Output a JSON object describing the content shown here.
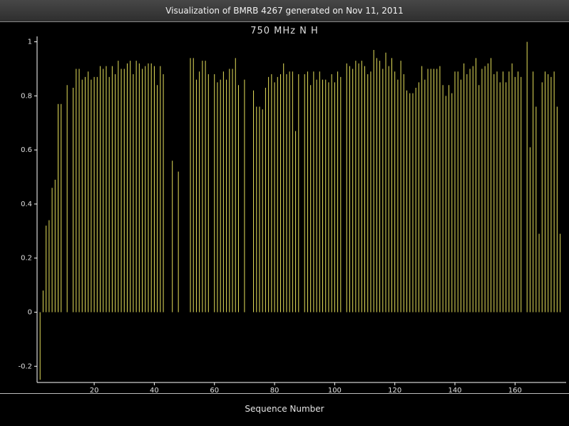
{
  "window": {
    "title": "Visualization of BMRB 4267 generated on Nov 11, 2011"
  },
  "colors": {
    "background": "#000000",
    "bar": "#e6e05a",
    "axis": "#ffffff",
    "text": "#e0e0e0"
  },
  "chart_data": {
    "type": "bar",
    "title": "750 MHz N H",
    "xlabel": "Sequence Number",
    "ylabel": "",
    "xlim": [
      1,
      177
    ],
    "ylim": [
      -0.26,
      1.02
    ],
    "xticks": [
      20,
      40,
      60,
      80,
      100,
      120,
      140,
      160
    ],
    "yticks": [
      -0.2,
      0,
      0.2,
      0.4,
      0.6,
      0.8,
      1
    ],
    "grid": false,
    "x": [
      2,
      3,
      4,
      5,
      6,
      7,
      8,
      9,
      11,
      13,
      14,
      15,
      16,
      17,
      18,
      19,
      20,
      21,
      22,
      23,
      24,
      25,
      26,
      27,
      28,
      29,
      30,
      31,
      32,
      33,
      34,
      35,
      36,
      37,
      38,
      39,
      40,
      41,
      42,
      43,
      46,
      48,
      52,
      53,
      54,
      55,
      56,
      57,
      58,
      60,
      61,
      62,
      63,
      64,
      65,
      66,
      67,
      68,
      70,
      73,
      74,
      75,
      76,
      77,
      78,
      79,
      80,
      81,
      82,
      83,
      84,
      85,
      86,
      87,
      88,
      90,
      91,
      92,
      93,
      94,
      95,
      96,
      97,
      98,
      99,
      100,
      101,
      102,
      104,
      105,
      106,
      107,
      108,
      109,
      110,
      111,
      112,
      113,
      114,
      115,
      116,
      117,
      118,
      119,
      120,
      121,
      122,
      123,
      124,
      125,
      126,
      127,
      128,
      129,
      130,
      131,
      132,
      133,
      134,
      135,
      136,
      137,
      138,
      139,
      140,
      141,
      142,
      143,
      144,
      145,
      146,
      147,
      148,
      149,
      150,
      151,
      152,
      153,
      154,
      155,
      156,
      157,
      158,
      159,
      160,
      161,
      162,
      164,
      165,
      166,
      167,
      168,
      169,
      170,
      171,
      172,
      173,
      174,
      175
    ],
    "values": [
      -0.25,
      0.08,
      0.32,
      0.34,
      0.46,
      0.49,
      0.77,
      0.77,
      0.84,
      0.83,
      0.9,
      0.9,
      0.86,
      0.87,
      0.89,
      0.86,
      0.87,
      0.87,
      0.91,
      0.9,
      0.91,
      0.87,
      0.91,
      0.88,
      0.93,
      0.9,
      0.9,
      0.92,
      0.93,
      0.88,
      0.93,
      0.92,
      0.9,
      0.91,
      0.92,
      0.92,
      0.91,
      0.84,
      0.91,
      0.88,
      0.56,
      0.52,
      0.94,
      0.94,
      0.86,
      0.89,
      0.93,
      0.93,
      0.88,
      0.88,
      0.85,
      0.86,
      0.89,
      0.86,
      0.9,
      0.9,
      0.94,
      0.84,
      0.86,
      0.82,
      0.76,
      0.76,
      0.75,
      0.83,
      0.87,
      0.88,
      0.85,
      0.87,
      0.88,
      0.92,
      0.88,
      0.89,
      0.89,
      0.67,
      0.88,
      0.88,
      0.89,
      0.84,
      0.89,
      0.86,
      0.89,
      0.86,
      0.86,
      0.85,
      0.88,
      0.85,
      0.89,
      0.87,
      0.92,
      0.91,
      0.9,
      0.93,
      0.92,
      0.93,
      0.91,
      0.88,
      0.89,
      0.97,
      0.94,
      0.93,
      0.9,
      0.96,
      0.91,
      0.94,
      0.89,
      0.86,
      0.93,
      0.88,
      0.82,
      0.81,
      0.81,
      0.83,
      0.85,
      0.91,
      0.86,
      0.9,
      0.9,
      0.9,
      0.9,
      0.91,
      0.84,
      0.8,
      0.84,
      0.81,
      0.89,
      0.89,
      0.86,
      0.92,
      0.88,
      0.9,
      0.91,
      0.94,
      0.84,
      0.9,
      0.91,
      0.92,
      0.94,
      0.88,
      0.89,
      0.85,
      0.89,
      0.85,
      0.89,
      0.92,
      0.87,
      0.89,
      0.87,
      1.0,
      0.61,
      0.89,
      0.76,
      0.29,
      0.85,
      0.89,
      0.88,
      0.87,
      0.89,
      0.76,
      0.29
    ]
  }
}
